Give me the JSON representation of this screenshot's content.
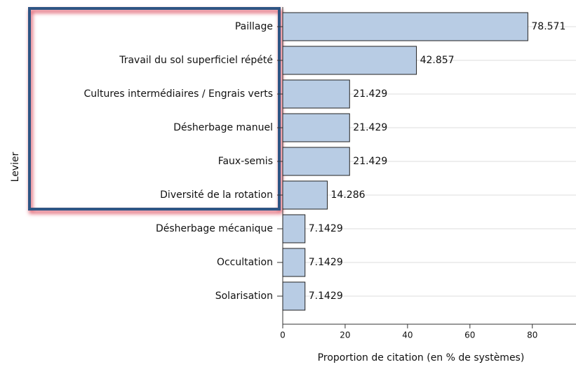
{
  "chart_data": {
    "type": "bar",
    "orientation": "horizontal",
    "x_label": "Proportion de citation (en % de systèmes)",
    "y_label": "Levier",
    "categories": [
      "Paillage",
      "Travail du sol superficiel répété",
      "Cultures intermédiaires / Engrais verts",
      "Désherbage manuel",
      "Faux-semis",
      "Diversité de la rotation",
      "Désherbage mécanique",
      "Occultation",
      "Solarisation"
    ],
    "values": [
      78.571,
      42.857,
      21.429,
      21.429,
      21.429,
      14.286,
      7.1429,
      7.1429,
      7.1429
    ],
    "color": "#b8cce4",
    "xlim": [
      0,
      94
    ],
    "xticks": [
      0,
      20,
      40,
      60,
      80
    ],
    "grid": true
  }
}
